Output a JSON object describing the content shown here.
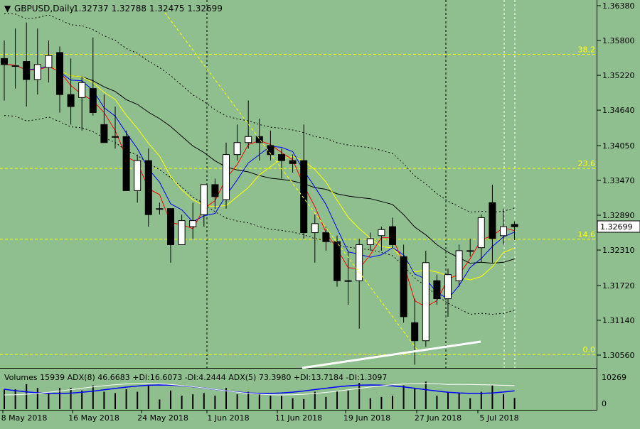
{
  "header": {
    "symbol_timeframe": "GBPUSD,Daily",
    "ohlc": "1.32737 1.32788 1.32475 1.32699"
  },
  "indicator": {
    "text": "Volumes 15939  ADX(8) 46.6683 +DI:16.6073 -DI:4.2444   ADX(5) 73.3980 +DI:13.7184 -DI:1.3097"
  },
  "colors": {
    "background": "#8fbf8f",
    "grid_line": "#000000",
    "bull_candle": "#ffffff",
    "bear_candle": "#000000",
    "ma_red": "#ff0000",
    "ma_blue": "#0000ff",
    "ma_yellow": "#ffff00",
    "ma_black": "#000000",
    "fib_line": "#ffff00",
    "trendline": "#ffffff",
    "price_tag": "#ffffff"
  },
  "chart_data": {
    "type": "candlestick",
    "price_axis_ticks": [
      "1.36380",
      "1.35800",
      "1.35220",
      "1.34640",
      "1.34050",
      "1.33470",
      "1.32890",
      "1.32310",
      "1.31720",
      "1.31140",
      "1.30560"
    ],
    "ylim": [
      1.304,
      1.365
    ],
    "date_labels": [
      "8 May 2018",
      "16 May 2018",
      "24 May 2018",
      "1 Jun 2018",
      "11 Jun 2018",
      "19 Jun 2018",
      "27 Jun 2018",
      "5 Jul 2018"
    ],
    "current_price": "1.32699",
    "fibonacci_levels": [
      {
        "label": "38.2",
        "price": 1.3557
      },
      {
        "label": "23.6",
        "price": 1.3367
      },
      {
        "label": "14.6",
        "price": 1.3249
      },
      {
        "label": "0.0",
        "price": 1.3057
      }
    ],
    "candles": [
      {
        "o": 1.355,
        "h": 1.358,
        "l": 1.348,
        "c": 1.354
      },
      {
        "o": 1.3538,
        "h": 1.36,
        "l": 1.35,
        "c": 1.3538
      },
      {
        "o": 1.3545,
        "h": 1.361,
        "l": 1.347,
        "c": 1.3515
      },
      {
        "o": 1.3515,
        "h": 1.36,
        "l": 1.349,
        "c": 1.354
      },
      {
        "o": 1.3535,
        "h": 1.358,
        "l": 1.351,
        "c": 1.3555
      },
      {
        "o": 1.356,
        "h": 1.357,
        "l": 1.346,
        "c": 1.349
      },
      {
        "o": 1.349,
        "h": 1.355,
        "l": 1.344,
        "c": 1.347
      },
      {
        "o": 1.3485,
        "h": 1.352,
        "l": 1.343,
        "c": 1.351
      },
      {
        "o": 1.35,
        "h": 1.3585,
        "l": 1.3455,
        "c": 1.346
      },
      {
        "o": 1.344,
        "h": 1.349,
        "l": 1.341,
        "c": 1.341
      },
      {
        "o": 1.342,
        "h": 1.347,
        "l": 1.34,
        "c": 1.342
      },
      {
        "o": 1.342,
        "h": 1.343,
        "l": 1.333,
        "c": 1.333
      },
      {
        "o": 1.333,
        "h": 1.339,
        "l": 1.331,
        "c": 1.338
      },
      {
        "o": 1.338,
        "h": 1.34,
        "l": 1.327,
        "c": 1.329
      },
      {
        "o": 1.33,
        "h": 1.331,
        "l": 1.329,
        "c": 1.33
      },
      {
        "o": 1.33,
        "h": 1.33,
        "l": 1.321,
        "c": 1.324
      },
      {
        "o": 1.324,
        "h": 1.329,
        "l": 1.324,
        "c": 1.328
      },
      {
        "o": 1.327,
        "h": 1.331,
        "l": 1.325,
        "c": 1.328
      },
      {
        "o": 1.329,
        "h": 1.334,
        "l": 1.327,
        "c": 1.334
      },
      {
        "o": 1.334,
        "h": 1.335,
        "l": 1.33,
        "c": 1.332
      },
      {
        "o": 1.3315,
        "h": 1.341,
        "l": 1.33,
        "c": 1.339
      },
      {
        "o": 1.339,
        "h": 1.344,
        "l": 1.338,
        "c": 1.341
      },
      {
        "o": 1.341,
        "h": 1.348,
        "l": 1.34,
        "c": 1.342
      },
      {
        "o": 1.342,
        "h": 1.345,
        "l": 1.338,
        "c": 1.341
      },
      {
        "o": 1.3405,
        "h": 1.343,
        "l": 1.338,
        "c": 1.339
      },
      {
        "o": 1.339,
        "h": 1.34,
        "l": 1.335,
        "c": 1.338
      },
      {
        "o": 1.338,
        "h": 1.339,
        "l": 1.336,
        "c": 1.3375
      },
      {
        "o": 1.338,
        "h": 1.344,
        "l": 1.325,
        "c": 1.326
      },
      {
        "o": 1.326,
        "h": 1.329,
        "l": 1.321,
        "c": 1.3275
      },
      {
        "o": 1.326,
        "h": 1.327,
        "l": 1.323,
        "c": 1.3245
      },
      {
        "o": 1.3245,
        "h": 1.3255,
        "l": 1.317,
        "c": 1.318
      },
      {
        "o": 1.318,
        "h": 1.323,
        "l": 1.314,
        "c": 1.318
      },
      {
        "o": 1.318,
        "h": 1.325,
        "l": 1.31,
        "c": 1.324
      },
      {
        "o": 1.324,
        "h": 1.326,
        "l": 1.323,
        "c": 1.325
      },
      {
        "o": 1.3255,
        "h": 1.327,
        "l": 1.323,
        "c": 1.3265
      },
      {
        "o": 1.327,
        "h": 1.3285,
        "l": 1.3235,
        "c": 1.324
      },
      {
        "o": 1.322,
        "h": 1.324,
        "l": 1.311,
        "c": 1.312
      },
      {
        "o": 1.311,
        "h": 1.315,
        "l": 1.304,
        "c": 1.308
      },
      {
        "o": 1.308,
        "h": 1.323,
        "l": 1.307,
        "c": 1.321
      },
      {
        "o": 1.318,
        "h": 1.319,
        "l": 1.314,
        "c": 1.315
      },
      {
        "o": 1.315,
        "h": 1.32,
        "l": 1.312,
        "c": 1.319
      },
      {
        "o": 1.318,
        "h": 1.324,
        "l": 1.317,
        "c": 1.323
      },
      {
        "o": 1.323,
        "h": 1.325,
        "l": 1.322,
        "c": 1.323
      },
      {
        "o": 1.3235,
        "h": 1.329,
        "l": 1.321,
        "c": 1.3285
      },
      {
        "o": 1.331,
        "h": 1.334,
        "l": 1.321,
        "c": 1.325
      },
      {
        "o": 1.3255,
        "h": 1.33,
        "l": 1.324,
        "c": 1.327
      },
      {
        "o": 1.32737,
        "h": 1.32788,
        "l": 1.32475,
        "c": 1.32699
      }
    ]
  }
}
